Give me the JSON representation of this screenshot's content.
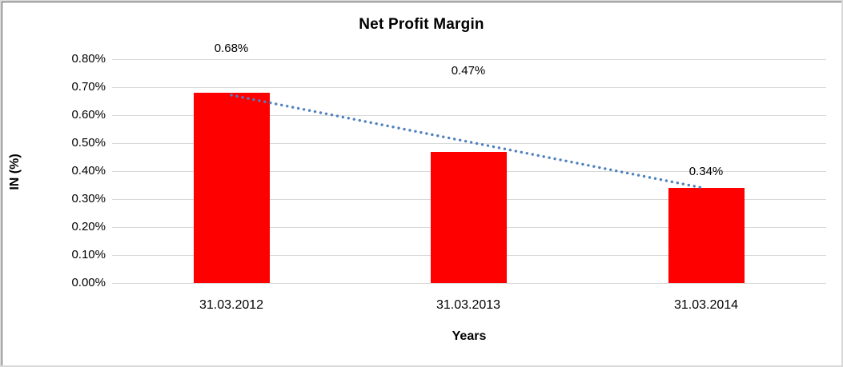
{
  "chart_data": {
    "type": "bar",
    "title": "Net Profit Margin",
    "xlabel": "Years",
    "ylabel": "IN (%)",
    "categories": [
      "31.03.2012",
      "31.03.2013",
      "31.03.2014"
    ],
    "values": [
      0.68,
      0.47,
      0.34
    ],
    "data_labels": [
      "0.68%",
      "0.47%",
      "0.34%"
    ],
    "y_ticks": [
      "0.00%",
      "0.10%",
      "0.20%",
      "0.30%",
      "0.40%",
      "0.50%",
      "0.60%",
      "0.70%",
      "0.80%"
    ],
    "ylim": [
      0.0,
      0.8
    ],
    "grid": true,
    "legend": "none",
    "trendline": {
      "type": "linear",
      "style": "dotted"
    },
    "colors": {
      "bar": "#ff0000",
      "trendline": "#4f81bd",
      "gridline": "#d9d9d9",
      "text": "#000000",
      "background": "#ffffff"
    }
  }
}
